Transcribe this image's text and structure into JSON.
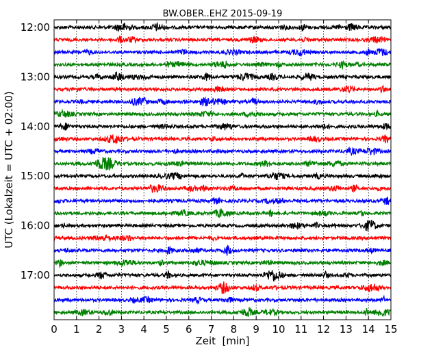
{
  "chart_data": {
    "type": "line",
    "title": "BW.OBER..EHZ 2015-09-19",
    "xlabel": "Zeit  [min]",
    "ylabel": "UTC (Lokalzeit = UTC + 02:00)",
    "xlim": [
      0,
      15
    ],
    "x_ticks": [
      "0",
      "1",
      "2",
      "3",
      "4",
      "5",
      "6",
      "7",
      "8",
      "9",
      "10",
      "11",
      "12",
      "13",
      "14",
      "15"
    ],
    "y_ticks": [
      "12:00",
      "13:00",
      "14:00",
      "15:00",
      "16:00",
      "17:00"
    ],
    "grid": "vertical dotted",
    "trace_interval_min": 15,
    "trace_colors": [
      "#000000",
      "#ff0000",
      "#0000ff",
      "#008000"
    ],
    "series": [
      {
        "start": "12:00"
      },
      {
        "start": "12:15"
      },
      {
        "start": "12:30"
      },
      {
        "start": "12:45"
      },
      {
        "start": "13:00"
      },
      {
        "start": "13:15"
      },
      {
        "start": "13:30"
      },
      {
        "start": "13:45"
      },
      {
        "start": "14:00"
      },
      {
        "start": "14:15"
      },
      {
        "start": "14:30"
      },
      {
        "start": "14:45"
      },
      {
        "start": "15:00"
      },
      {
        "start": "15:15"
      },
      {
        "start": "15:30"
      },
      {
        "start": "15:45"
      },
      {
        "start": "16:00"
      },
      {
        "start": "16:15"
      },
      {
        "start": "16:30"
      },
      {
        "start": "16:45"
      },
      {
        "start": "17:00"
      },
      {
        "start": "17:15"
      },
      {
        "start": "17:30"
      },
      {
        "start": "17:45"
      }
    ]
  }
}
